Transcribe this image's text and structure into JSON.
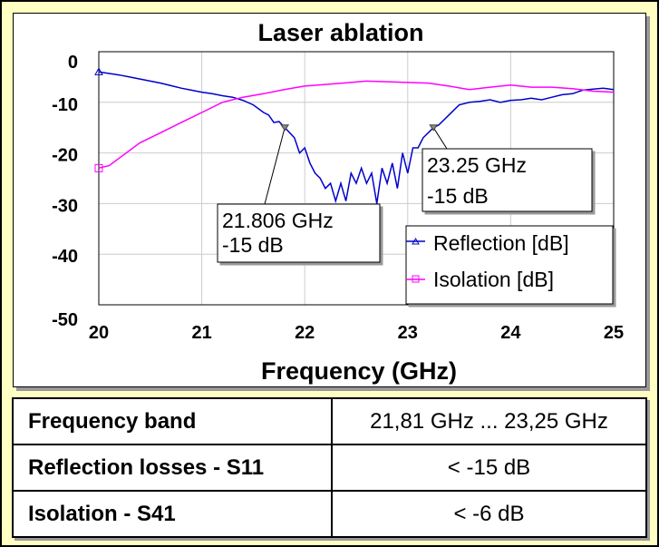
{
  "chart_data": {
    "type": "line",
    "title": "Laser ablation",
    "xlabel": "Frequency (GHz)",
    "ylabel": "",
    "xlim": [
      20,
      25
    ],
    "ylim": [
      -50,
      0
    ],
    "xticks": [
      "20",
      "21",
      "22",
      "23",
      "24",
      "25"
    ],
    "yticks": [
      "0",
      "-10",
      "-20",
      "-30",
      "-40",
      "-50"
    ],
    "grid": true,
    "legend": "bottom-right",
    "series": [
      {
        "name": "Reflection [dB]",
        "color": "#0000cc",
        "marker": "triangle",
        "x": [
          20,
          20.1,
          20.2,
          20.3,
          20.4,
          20.5,
          20.6,
          20.7,
          20.8,
          20.9,
          21,
          21.1,
          21.2,
          21.3,
          21.4,
          21.5,
          21.6,
          21.65,
          21.7,
          21.75,
          21.806,
          21.9,
          21.95,
          22,
          22.05,
          22.1,
          22.15,
          22.2,
          22.25,
          22.3,
          22.35,
          22.4,
          22.45,
          22.5,
          22.55,
          22.6,
          22.65,
          22.7,
          22.75,
          22.8,
          22.85,
          22.9,
          22.95,
          23,
          23.05,
          23.1,
          23.15,
          23.2,
          23.25,
          23.3,
          23.4,
          23.5,
          23.6,
          23.7,
          23.8,
          23.9,
          24,
          24.1,
          24.2,
          24.3,
          24.4,
          24.5,
          24.6,
          24.7,
          24.8,
          24.9,
          25
        ],
        "y": [
          -4,
          -4.3,
          -4.6,
          -5,
          -5.4,
          -5.8,
          -6.2,
          -6.7,
          -7.2,
          -7.6,
          -8,
          -8.3,
          -8.7,
          -9,
          -9.6,
          -10.5,
          -12,
          -12.5,
          -14,
          -13.8,
          -15,
          -17,
          -20,
          -19,
          -22,
          -24,
          -25,
          -27,
          -26,
          -29.5,
          -26,
          -29.5,
          -24,
          -26,
          -23,
          -26,
          -24,
          -30,
          -23,
          -26,
          -22,
          -27,
          -20,
          -24,
          -19,
          -19,
          -17,
          -16,
          -15,
          -14.5,
          -12.5,
          -10.5,
          -10,
          -9.8,
          -9.5,
          -10,
          -9.6,
          -9.5,
          -9.2,
          -9.5,
          -9,
          -8.5,
          -8.3,
          -7.6,
          -7.4,
          -7.2,
          -7.5
        ]
      },
      {
        "name": "Isolation [dB]",
        "color": "#ff00ff",
        "marker": "square",
        "x": [
          20,
          20.1,
          20.2,
          20.4,
          20.6,
          20.8,
          21,
          21.2,
          21.4,
          21.6,
          21.8,
          22,
          22.3,
          22.6,
          22.9,
          23.2,
          23.4,
          23.6,
          23.8,
          24,
          24.2,
          24.4,
          24.6,
          24.8,
          25
        ],
        "y": [
          -23,
          -22.5,
          -21,
          -18,
          -16,
          -14,
          -12,
          -10,
          -9,
          -8.3,
          -7.5,
          -6.8,
          -6.3,
          -5.8,
          -6,
          -6.2,
          -6.8,
          -7.5,
          -7,
          -6.6,
          -7,
          -7,
          -7.3,
          -7.8,
          -8
        ]
      }
    ],
    "annotations": [
      {
        "x": 21.806,
        "y": -15,
        "freq_label": "21.806 GHz",
        "value_label": "-15 dB"
      },
      {
        "x": 23.25,
        "y": -15,
        "freq_label": "23.25 GHz",
        "value_label": "-15 dB"
      }
    ]
  },
  "table": {
    "rows": [
      {
        "label": "Frequency band",
        "value": "21,81 GHz ... 23,25 GHz"
      },
      {
        "label": "Reflection losses - S11",
        "value": "< -15 dB"
      },
      {
        "label": "Isolation - S41",
        "value": "< -6 dB"
      }
    ]
  }
}
